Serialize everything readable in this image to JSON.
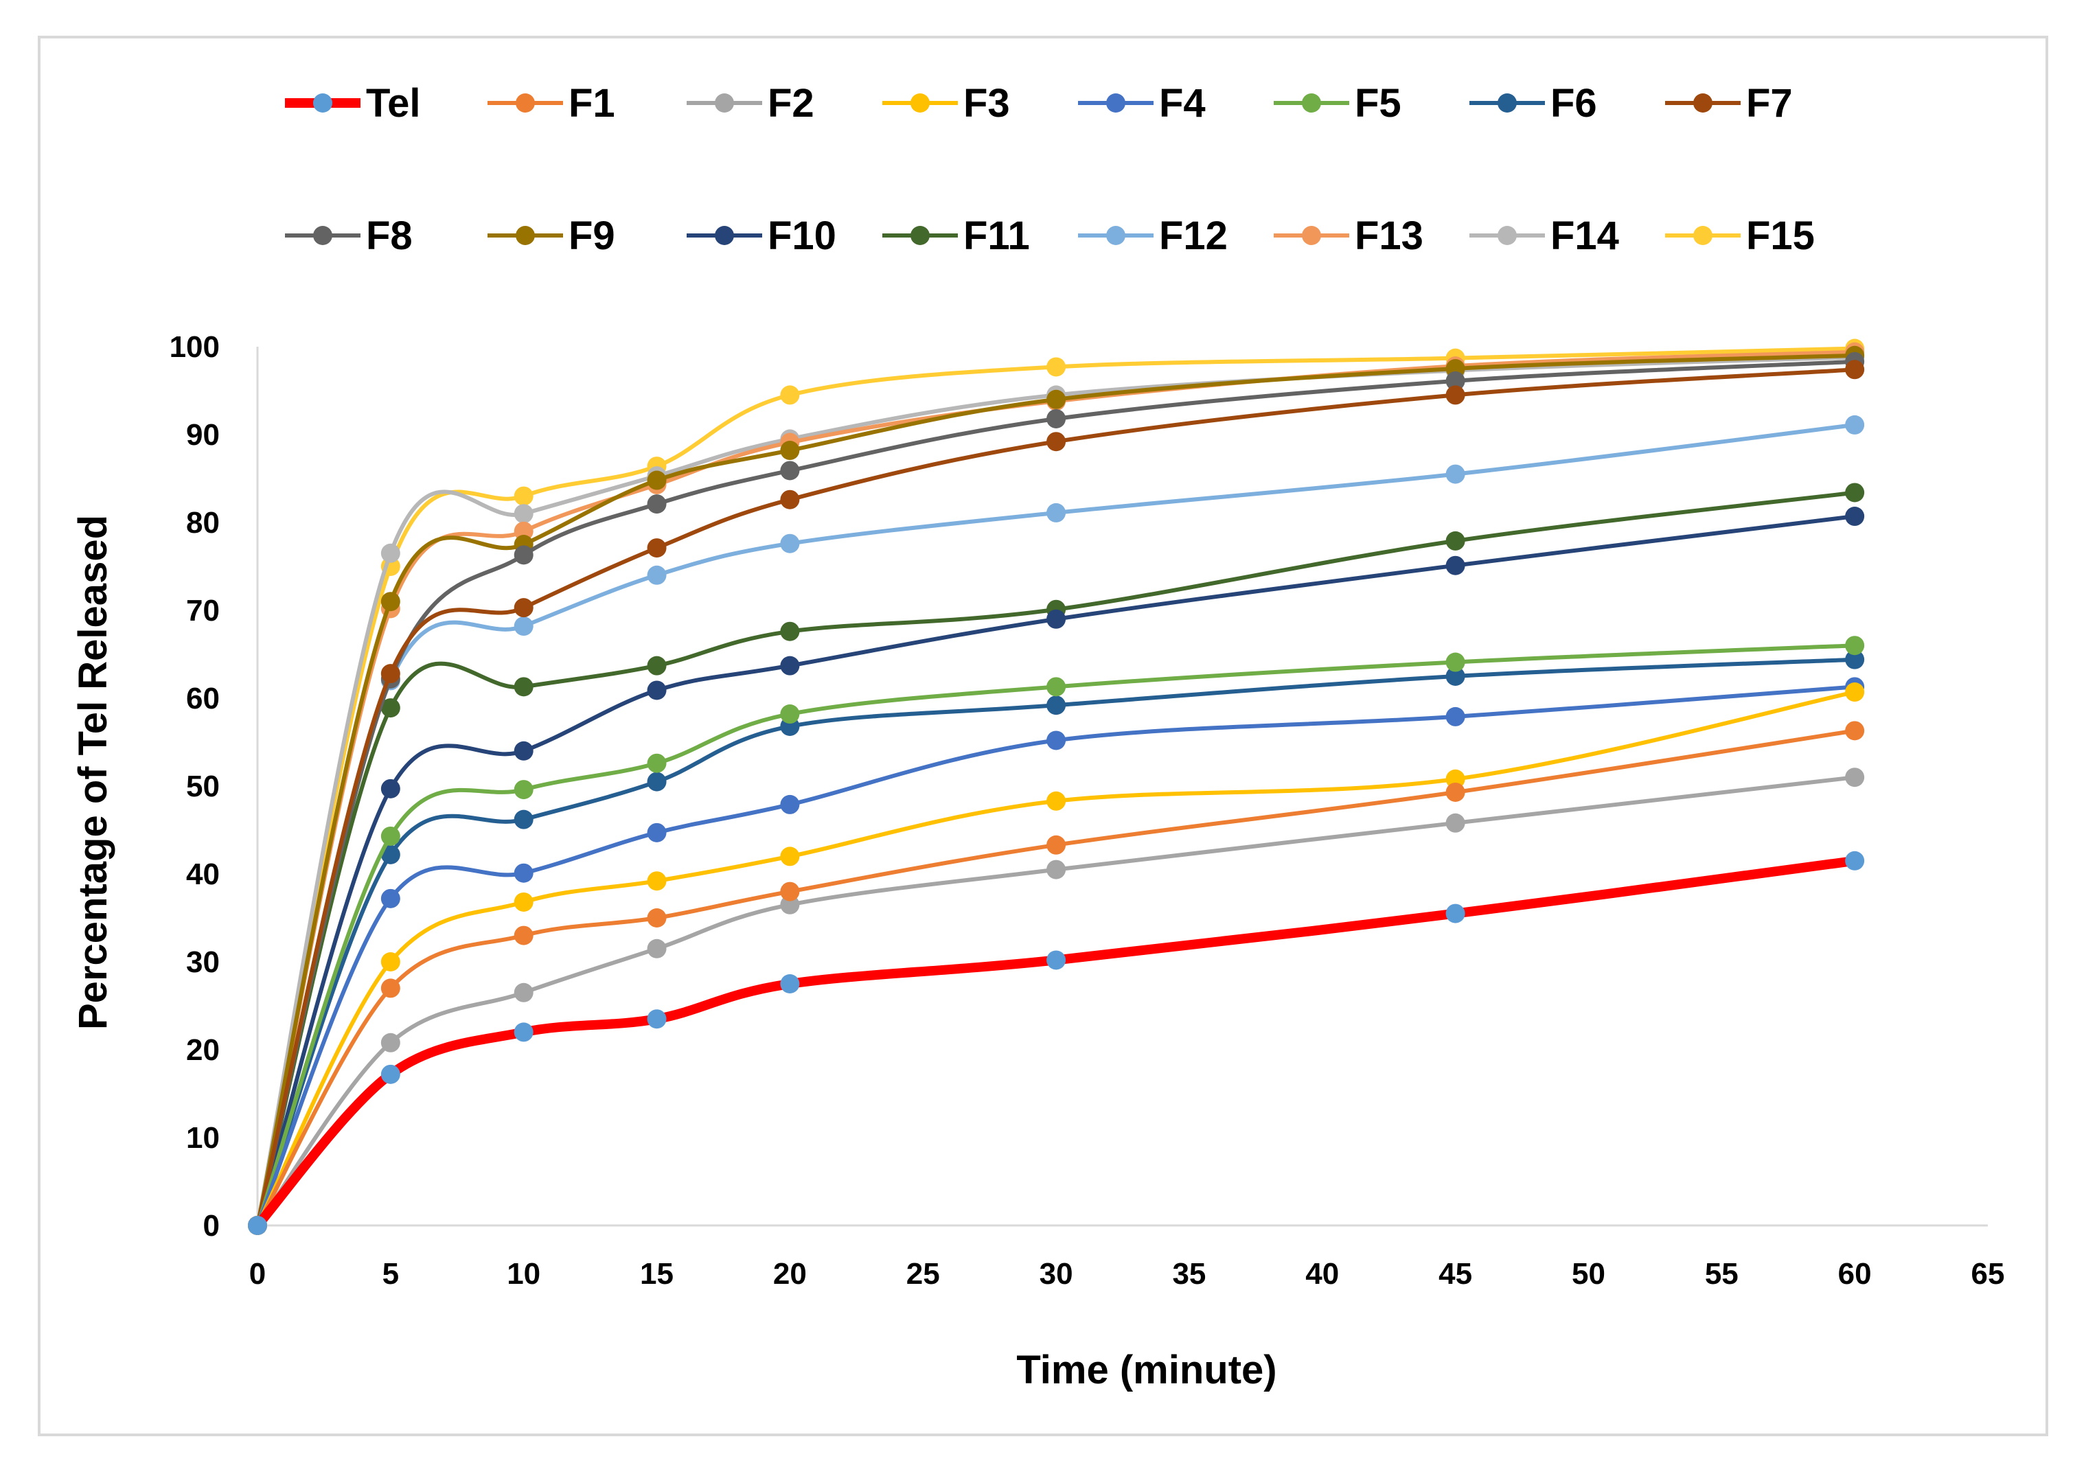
{
  "chart_data": {
    "type": "line",
    "title": "",
    "xlabel": "Time (minute)",
    "ylabel": "Percentage of Tel Released",
    "xlim": [
      0,
      65
    ],
    "ylim": [
      0,
      100
    ],
    "x_ticks": [
      "0",
      "5",
      "10",
      "15",
      "20",
      "25",
      "30",
      "35",
      "40",
      "45",
      "50",
      "55",
      "60",
      "65"
    ],
    "y_ticks": [
      "0",
      "10",
      "20",
      "30",
      "40",
      "50",
      "60",
      "70",
      "80",
      "90",
      "100"
    ],
    "legend_position": "top",
    "x": [
      0,
      5,
      10,
      15,
      20,
      30,
      45,
      60
    ],
    "series": [
      {
        "name": "Tel",
        "line_color": "#ff0000",
        "marker_color": "#5b9bd5",
        "values": [
          0,
          17.2,
          22,
          23.5,
          27.5,
          30.2,
          35.5,
          41.5
        ]
      },
      {
        "name": "F1",
        "line_color": "#ed7d31",
        "marker_color": "#ed7d31",
        "values": [
          0,
          27,
          33,
          35,
          38,
          43.3,
          49.3,
          56.3
        ]
      },
      {
        "name": "F2",
        "line_color": "#a5a5a5",
        "marker_color": "#a5a5a5",
        "values": [
          0,
          20.8,
          26.5,
          31.5,
          36.5,
          40.5,
          45.8,
          51
        ]
      },
      {
        "name": "F3",
        "line_color": "#ffc000",
        "marker_color": "#ffc000",
        "values": [
          0,
          30,
          36.8,
          39.2,
          42,
          48.3,
          50.8,
          60.7
        ]
      },
      {
        "name": "F4",
        "line_color": "#4472c4",
        "marker_color": "#4472c4",
        "values": [
          0,
          37.2,
          40.1,
          44.7,
          47.9,
          55.2,
          57.9,
          61.3
        ]
      },
      {
        "name": "F5",
        "line_color": "#70ad47",
        "marker_color": "#70ad47",
        "values": [
          0,
          44.3,
          49.6,
          52.6,
          58.2,
          61.3,
          64.1,
          66
        ]
      },
      {
        "name": "F6",
        "line_color": "#255e91",
        "marker_color": "#255e91",
        "values": [
          0,
          42.2,
          46.2,
          50.5,
          56.8,
          59.2,
          62.5,
          64.4
        ]
      },
      {
        "name": "F7",
        "line_color": "#9e480e",
        "marker_color": "#9e480e",
        "values": [
          0,
          62.8,
          70.3,
          77.1,
          82.6,
          89.2,
          94.5,
          97.4
        ]
      },
      {
        "name": "F8",
        "line_color": "#636363",
        "marker_color": "#636363",
        "values": [
          0,
          62.2,
          76.3,
          82.1,
          85.9,
          91.8,
          96.1,
          98.3
        ]
      },
      {
        "name": "F9",
        "line_color": "#997300",
        "marker_color": "#997300",
        "values": [
          0,
          71,
          77.5,
          84.8,
          88.2,
          94,
          97.5,
          99
        ]
      },
      {
        "name": "F10",
        "line_color": "#264478",
        "marker_color": "#264478",
        "values": [
          0,
          49.7,
          54,
          60.9,
          63.7,
          69,
          75.1,
          80.7
        ]
      },
      {
        "name": "F11",
        "line_color": "#43682b",
        "marker_color": "#43682b",
        "values": [
          0,
          58.9,
          61.3,
          63.7,
          67.6,
          70.1,
          77.9,
          83.4
        ]
      },
      {
        "name": "F12",
        "line_color": "#7cafdd",
        "marker_color": "#7cafdd",
        "values": [
          0,
          62,
          68.2,
          74,
          77.6,
          81.1,
          85.5,
          91.1
        ]
      },
      {
        "name": "F13",
        "line_color": "#f1975a",
        "marker_color": "#f1975a",
        "values": [
          0,
          70.2,
          79,
          84.3,
          89.1,
          93.8,
          97.8,
          99.4
        ]
      },
      {
        "name": "F14",
        "line_color": "#b7b7b7",
        "marker_color": "#b7b7b7",
        "values": [
          0,
          76.5,
          81,
          85.3,
          89.5,
          94.5,
          97.3,
          98.8
        ]
      },
      {
        "name": "F15",
        "line_color": "#ffcd33",
        "marker_color": "#ffcd33",
        "values": [
          0,
          75,
          83,
          86.4,
          94.5,
          97.7,
          98.7,
          99.8
        ]
      }
    ]
  }
}
